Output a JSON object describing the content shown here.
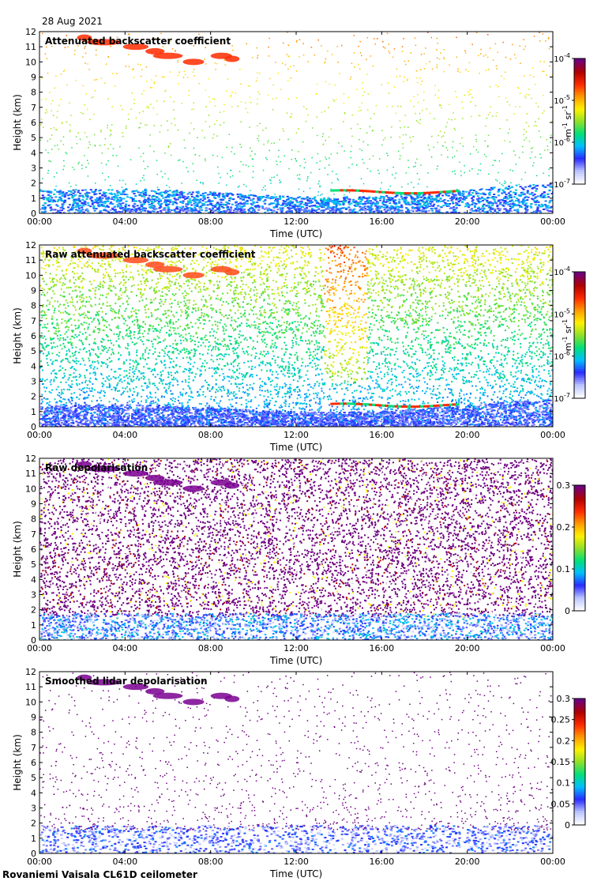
{
  "date": "28 Aug 2021",
  "site": "Rovaniemi Vaisala CL61D ceilometer",
  "chart_data": [
    {
      "type": "heatmap",
      "title": "Attenuated backscatter coefficient",
      "xlabel": "Time (UTC)",
      "ylabel": "Height (km)",
      "xticks": [
        "00:00",
        "04:00",
        "08:00",
        "12:00",
        "16:00",
        "20:00",
        "00:00"
      ],
      "xlim_hours": [
        0,
        24
      ],
      "yticks": [
        0,
        1,
        2,
        3,
        4,
        5,
        6,
        7,
        8,
        9,
        10,
        11,
        12
      ],
      "ylim": [
        0,
        12
      ],
      "colorbar": {
        "scale": "log",
        "ticks": [
          "10^-7",
          "10^-6",
          "10^-5",
          "10^-4"
        ],
        "unit": "m^-1 sr^-1",
        "colors": [
          "#ffffff",
          "#b9c4ff",
          "#2a2aff",
          "#00bfff",
          "#00e07a",
          "#8ee02a",
          "#fff200",
          "#ff9c00",
          "#ff2a00",
          "#b00000",
          "#6e0080"
        ]
      },
      "layer": {
        "boundary_layer_top_km": [
          1.7,
          1.6,
          1.4,
          1.3,
          1.4,
          1.5,
          1.5,
          1.6,
          1.7,
          1.75,
          1.8,
          1.9
        ],
        "cloud_base": {
          "hours": [
            13.6,
            19.5
          ],
          "height_km": 1.5
        }
      }
    },
    {
      "type": "heatmap",
      "title": "Raw attenuated backscatter coefficient",
      "xlabel": "Time (UTC)",
      "ylabel": "Height (km)",
      "xticks": [
        "00:00",
        "04:00",
        "08:00",
        "12:00",
        "16:00",
        "20:00",
        "00:00"
      ],
      "xlim_hours": [
        0,
        24
      ],
      "yticks": [
        0,
        1,
        2,
        3,
        4,
        5,
        6,
        7,
        8,
        9,
        10,
        11,
        12
      ],
      "ylim": [
        0,
        12
      ],
      "colorbar": {
        "scale": "log",
        "ticks": [
          "10^-7",
          "10^-6",
          "10^-5",
          "10^-4"
        ],
        "unit": "m^-1 sr^-1",
        "colors": [
          "#ffffff",
          "#b9c4ff",
          "#2a2aff",
          "#00bfff",
          "#00e07a",
          "#8ee02a",
          "#fff200",
          "#ff9c00",
          "#ff2a00",
          "#b00000",
          "#6e0080"
        ]
      }
    },
    {
      "type": "heatmap",
      "title": "Raw depolarisation",
      "xlabel": "Time (UTC)",
      "ylabel": "Height (km)",
      "xticks": [
        "00:00",
        "04:00",
        "08:00",
        "12:00",
        "16:00",
        "20:00",
        "00:00"
      ],
      "xlim_hours": [
        0,
        24
      ],
      "yticks": [
        0,
        1,
        2,
        3,
        4,
        5,
        6,
        7,
        8,
        9,
        10,
        11,
        12
      ],
      "ylim": [
        0,
        12
      ],
      "colorbar": {
        "scale": "linear",
        "ticks": [
          "0",
          "0.1",
          "0.2",
          "0.3"
        ],
        "unit": "",
        "colors": [
          "#ffffff",
          "#b9c4ff",
          "#2a2aff",
          "#00bfff",
          "#00e07a",
          "#8ee02a",
          "#fff200",
          "#ff9c00",
          "#ff2a00",
          "#b00000",
          "#6e0080"
        ]
      }
    },
    {
      "type": "heatmap",
      "title": "Smoothed lidar depolarisation",
      "xlabel": "Time (UTC)",
      "ylabel": "Height (km)",
      "xticks": [
        "00:00",
        "04:00",
        "08:00",
        "12:00",
        "16:00",
        "20:00",
        "00:00"
      ],
      "xlim_hours": [
        0,
        24
      ],
      "yticks": [
        0,
        1,
        2,
        3,
        4,
        5,
        6,
        7,
        8,
        9,
        10,
        11,
        12
      ],
      "ylim": [
        0,
        12
      ],
      "colorbar": {
        "scale": "linear",
        "ticks": [
          "0",
          "0.05",
          "0.1",
          "0.15",
          "0.2",
          "0.25",
          "0.3"
        ],
        "unit": "",
        "colors": [
          "#ffffff",
          "#b9c4ff",
          "#2a2aff",
          "#00bfff",
          "#00e07a",
          "#8ee02a",
          "#fff200",
          "#ff9c00",
          "#ff2a00",
          "#b00000",
          "#6e0080"
        ]
      }
    }
  ]
}
